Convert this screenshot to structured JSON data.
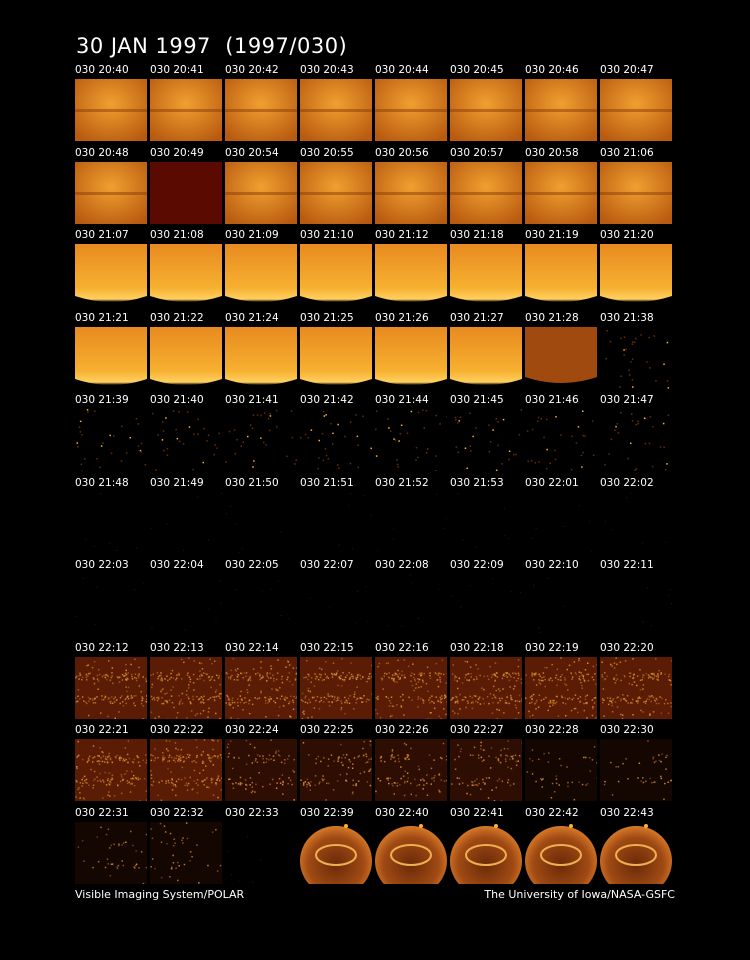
{
  "title": "30 JAN 1997  (1997/030)",
  "footer": {
    "left": "Visible Imaging System/POLAR",
    "right": "The University of Iowa/NASA-GSFC"
  },
  "frames": [
    {
      "label": "030 20:40",
      "style": "bright"
    },
    {
      "label": "030 20:41",
      "style": "bright"
    },
    {
      "label": "030 20:42",
      "style": "bright"
    },
    {
      "label": "030 20:43",
      "style": "bright"
    },
    {
      "label": "030 20:44",
      "style": "bright"
    },
    {
      "label": "030 20:45",
      "style": "bright"
    },
    {
      "label": "030 20:46",
      "style": "bright"
    },
    {
      "label": "030 20:47",
      "style": "bright"
    },
    {
      "label": "030 20:48",
      "style": "bright"
    },
    {
      "label": "030 20:49",
      "style": "dark-red"
    },
    {
      "label": "030 20:54",
      "style": "bright"
    },
    {
      "label": "030 20:55",
      "style": "bright"
    },
    {
      "label": "030 20:56",
      "style": "bright"
    },
    {
      "label": "030 20:57",
      "style": "bright"
    },
    {
      "label": "030 20:58",
      "style": "bright"
    },
    {
      "label": "030 21:06",
      "style": "bright"
    },
    {
      "label": "030 21:07",
      "style": "glow"
    },
    {
      "label": "030 21:08",
      "style": "glow"
    },
    {
      "label": "030 21:09",
      "style": "glow"
    },
    {
      "label": "030 21:10",
      "style": "glow"
    },
    {
      "label": "030 21:12",
      "style": "glow"
    },
    {
      "label": "030 21:18",
      "style": "glow"
    },
    {
      "label": "030 21:19",
      "style": "glow"
    },
    {
      "label": "030 21:20",
      "style": "glow"
    },
    {
      "label": "030 21:21",
      "style": "glow"
    },
    {
      "label": "030 21:22",
      "style": "glow"
    },
    {
      "label": "030 21:24",
      "style": "glow"
    },
    {
      "label": "030 21:25",
      "style": "glow"
    },
    {
      "label": "030 21:26",
      "style": "glow"
    },
    {
      "label": "030 21:27",
      "style": "glow"
    },
    {
      "label": "030 21:28",
      "style": "dim"
    },
    {
      "label": "030 21:38",
      "style": "stars"
    },
    {
      "label": "030 21:39",
      "style": "stars"
    },
    {
      "label": "030 21:40",
      "style": "stars"
    },
    {
      "label": "030 21:41",
      "style": "stars"
    },
    {
      "label": "030 21:42",
      "style": "stars"
    },
    {
      "label": "030 21:44",
      "style": "stars"
    },
    {
      "label": "030 21:45",
      "style": "stars"
    },
    {
      "label": "030 21:46",
      "style": "stars"
    },
    {
      "label": "030 21:47",
      "style": "stars"
    },
    {
      "label": "030 21:48",
      "style": "black"
    },
    {
      "label": "030 21:49",
      "style": "black"
    },
    {
      "label": "030 21:50",
      "style": "black"
    },
    {
      "label": "030 21:51",
      "style": "black"
    },
    {
      "label": "030 21:52",
      "style": "black"
    },
    {
      "label": "030 21:53",
      "style": "black"
    },
    {
      "label": "030 22:01",
      "style": "black"
    },
    {
      "label": "030 22:02",
      "style": "black"
    },
    {
      "label": "030 22:03",
      "style": "black"
    },
    {
      "label": "030 22:04",
      "style": "black"
    },
    {
      "label": "030 22:05",
      "style": "black"
    },
    {
      "label": "030 22:07",
      "style": "black"
    },
    {
      "label": "030 22:08",
      "style": "black"
    },
    {
      "label": "030 22:09",
      "style": "black"
    },
    {
      "label": "030 22:10",
      "style": "black"
    },
    {
      "label": "030 22:11",
      "style": "black"
    },
    {
      "label": "030 22:12",
      "style": "noise"
    },
    {
      "label": "030 22:13",
      "style": "noise"
    },
    {
      "label": "030 22:14",
      "style": "noise"
    },
    {
      "label": "030 22:15",
      "style": "noise"
    },
    {
      "label": "030 22:16",
      "style": "noise"
    },
    {
      "label": "030 22:18",
      "style": "noise"
    },
    {
      "label": "030 22:19",
      "style": "noise"
    },
    {
      "label": "030 22:20",
      "style": "noise"
    },
    {
      "label": "030 22:21",
      "style": "noise"
    },
    {
      "label": "030 22:22",
      "style": "noise"
    },
    {
      "label": "030 22:24",
      "style": "noise-dim"
    },
    {
      "label": "030 22:25",
      "style": "noise-dim"
    },
    {
      "label": "030 22:26",
      "style": "noise-dim"
    },
    {
      "label": "030 22:27",
      "style": "noise-dim"
    },
    {
      "label": "030 22:28",
      "style": "noise-faint"
    },
    {
      "label": "030 22:30",
      "style": "noise-faint"
    },
    {
      "label": "030 22:31",
      "style": "noise-faint"
    },
    {
      "label": "030 22:32",
      "style": "noise-faint"
    },
    {
      "label": "030 22:33",
      "style": "black"
    },
    {
      "label": "030 22:39",
      "style": "earth"
    },
    {
      "label": "030 22:40",
      "style": "earth"
    },
    {
      "label": "030 22:41",
      "style": "earth"
    },
    {
      "label": "030 22:42",
      "style": "earth"
    },
    {
      "label": "030 22:43",
      "style": "earth"
    }
  ]
}
